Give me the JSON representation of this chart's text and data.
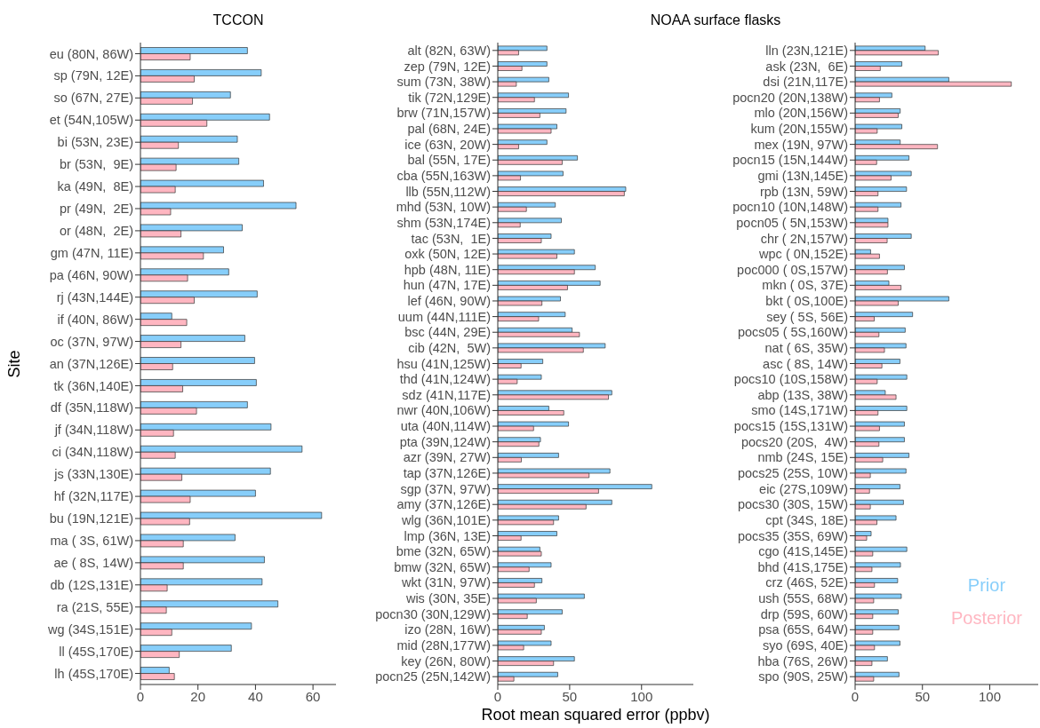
{
  "chart_data": [
    {
      "type": "bar",
      "orientation": "horizontal",
      "title": "TCCON",
      "ylabel": "Site",
      "xlim": [
        0,
        68
      ],
      "xticks": [
        0,
        20,
        40,
        60
      ],
      "categories": [
        "eu (80N, 86W)",
        "sp (79N, 12E)",
        "so (67N, 27E)",
        "et (54N,105W)",
        "bi (53N, 23E)",
        "br (53N,  9E)",
        "ka (49N,  8E)",
        "pr (49N,  2E)",
        "or (48N,  2E)",
        "gm (47N, 11E)",
        "pa (46N, 90W)",
        "rj (43N,144E)",
        "if (40N, 86W)",
        "oc (37N, 97W)",
        "an (37N,126E)",
        "tk (36N,140E)",
        "df (35N,118W)",
        "jf (34N,118W)",
        "ci (34N,118W)",
        "js (33N,130E)",
        "hf (32N,117E)",
        "bu (19N,121E)",
        "ma ( 3S, 61W)",
        "ae ( 8S, 14W)",
        "db (12S,131E)",
        "ra (21S, 55E)",
        "wg (34S,151E)",
        "ll (45S,170E)",
        "lh (45S,170E)"
      ],
      "series": [
        {
          "color": "#87cefa",
          "values": [
            37.2,
            42.0,
            31.3,
            44.9,
            33.7,
            34.2,
            42.8,
            54.1,
            35.4,
            28.9,
            30.7,
            40.6,
            10.9,
            36.3,
            39.7,
            40.3,
            37.2,
            45.4,
            56.2,
            45.2,
            40.0,
            63.0,
            32.9,
            43.1,
            42.3,
            47.8,
            38.6,
            31.6,
            10.0
          ]
        },
        {
          "color": "#ffb6c1",
          "values": [
            17.3,
            18.7,
            18.1,
            23.1,
            13.2,
            12.4,
            12.1,
            10.5,
            14.1,
            21.9,
            16.4,
            18.7,
            16.1,
            14.1,
            11.2,
            14.7,
            19.5,
            11.5,
            12.1,
            14.4,
            17.3,
            17.1,
            14.9,
            14.9,
            9.3,
            9.0,
            10.9,
            13.5,
            11.8
          ]
        }
      ]
    },
    {
      "type": "bar",
      "orientation": "horizontal",
      "title": "NOAA surface flasks",
      "xlabel": "Root mean squared error (ppbv)",
      "xlim": [
        0,
        136
      ],
      "xticks": [
        0,
        50,
        100
      ],
      "categories": [
        "alt (82N, 63W)",
        "zep (79N, 12E)",
        "sum (73N, 38W)",
        "tik (72N,129E)",
        "brw (71N,157W)",
        "pal (68N, 24E)",
        "ice (63N, 20W)",
        "bal (55N, 17E)",
        "cba (55N,163W)",
        "llb (55N,112W)",
        "mhd (53N, 10W)",
        "shm (53N,174E)",
        "tac (53N,  1E)",
        "oxk (50N, 12E)",
        "hpb (48N, 11E)",
        "hun (47N, 17E)",
        "lef (46N, 90W)",
        "uum (44N,111E)",
        "bsc (44N, 29E)",
        "cib (42N,  5W)",
        "hsu (41N,125W)",
        "thd (41N,124W)",
        "sdz (41N,117E)",
        "nwr (40N,106W)",
        "uta (40N,114W)",
        "pta (39N,124W)",
        "azr (39N, 27W)",
        "tap (37N,126E)",
        "sgp (37N, 97W)",
        "amy (37N,126E)",
        "wlg (36N,101E)",
        "lmp (36N, 13E)",
        "bme (32N, 65W)",
        "bmw (32N, 65W)",
        "wkt (31N, 97W)",
        "wis (30N, 35E)",
        "pocn30 (30N,129W)",
        "izo (28N, 16W)",
        "mid (28N,177W)",
        "key (26N, 80W)",
        "pocn25 (25N,142W)"
      ],
      "series": [
        {
          "color": "#87cefa",
          "values": [
            34.2,
            34.2,
            35.5,
            49.2,
            47.5,
            41.1,
            34.2,
            55.4,
            45.4,
            89.0,
            40.0,
            44.2,
            37.1,
            53.3,
            67.8,
            71.2,
            43.6,
            46.9,
            51.7,
            74.7,
            31.3,
            30.3,
            79.3,
            35.5,
            49.2,
            29.7,
            42.3,
            78.0,
            107.1,
            79.3,
            42.3,
            41.1,
            29.3,
            37.1,
            30.7,
            60.2,
            44.8,
            32.4,
            37.1,
            53.3,
            41.7
          ]
        },
        {
          "color": "#ffb6c1",
          "values": [
            14.5,
            16.8,
            12.9,
            25.5,
            29.3,
            37.1,
            14.5,
            44.8,
            15.8,
            88.0,
            19.9,
            15.6,
            30.3,
            41.1,
            53.3,
            48.5,
            30.7,
            28.4,
            56.8,
            59.5,
            16.2,
            13.5,
            77.0,
            45.9,
            24.9,
            28.6,
            16.4,
            63.5,
            70.1,
            61.4,
            38.8,
            16.2,
            30.3,
            21.8,
            25.5,
            26.8,
            20.5,
            30.3,
            18.0,
            38.8,
            11.2
          ]
        }
      ]
    },
    {
      "type": "bar",
      "orientation": "horizontal",
      "legend": "bottom right",
      "xlim": [
        0,
        136
      ],
      "xticks": [
        0,
        50,
        100
      ],
      "categories": [
        "lln (23N,121E)",
        "ask (23N,  6E)",
        "dsi (21N,117E)",
        "pocn20 (20N,138W)",
        "mlo (20N,156W)",
        "kum (20N,155W)",
        "mex (19N, 97W)",
        "pocn15 (15N,144W)",
        "gmi (13N,145E)",
        "rpb (13N, 59W)",
        "pocn10 (10N,148W)",
        "pocn05 ( 5N,153W)",
        "chr ( 2N,157W)",
        "wpc ( 0N,152E)",
        "poc000 ( 0S,157W)",
        "mkn ( 0S, 37E)",
        "bkt ( 0S,100E)",
        "sey ( 5S, 56E)",
        "pocs05 ( 5S,160W)",
        "nat ( 6S, 35W)",
        "asc ( 8S, 14W)",
        "pocs10 (10S,158W)",
        "abp (13S, 38W)",
        "smo (14S,171W)",
        "pocs15 (15S,131W)",
        "pocs20 (20S,  4W)",
        "nmb (24S, 15E)",
        "pocs25 (25S, 10W)",
        "eic (27S,109W)",
        "pocs30 (30S, 15W)",
        "cpt (34S, 18E)",
        "pocs35 (35S, 69W)",
        "cgo (41S,145E)",
        "bhd (41S,175E)",
        "crz (46S, 52E)",
        "ush (55S, 68W)",
        "drp (59S, 60W)",
        "psa (65S, 64W)",
        "syo (69S, 40E)",
        "hba (76S, 26W)",
        "spo (90S, 25W)"
      ],
      "series": [
        {
          "name": "Prior",
          "color": "#87cefa",
          "values": [
            52.0,
            34.7,
            69.6,
            27.3,
            33.5,
            34.7,
            33.5,
            40.0,
            41.7,
            38.2,
            34.1,
            24.4,
            41.7,
            11.5,
            36.6,
            25.1,
            69.6,
            42.7,
            37.2,
            37.8,
            33.3,
            38.4,
            22.4,
            38.4,
            36.6,
            36.6,
            40.0,
            37.8,
            33.3,
            35.9,
            30.4,
            11.9,
            38.4,
            33.7,
            31.6,
            34.3,
            32.0,
            32.6,
            33.3,
            24.0,
            32.6
          ]
        },
        {
          "name": "Posterior",
          "color": "#ffb6c1",
          "values": [
            61.8,
            18.7,
            116.0,
            18.1,
            32.0,
            16.4,
            61.2,
            16.0,
            26.7,
            17.0,
            17.0,
            24.4,
            23.8,
            18.1,
            24.0,
            34.1,
            32.0,
            14.2,
            17.7,
            21.8,
            19.9,
            16.4,
            30.4,
            17.0,
            18.1,
            17.7,
            20.5,
            11.3,
            10.7,
            11.3,
            16.2,
            8.6,
            13.1,
            12.5,
            14.4,
            13.8,
            13.1,
            13.1,
            14.4,
            12.5,
            13.8
          ]
        }
      ]
    }
  ]
}
